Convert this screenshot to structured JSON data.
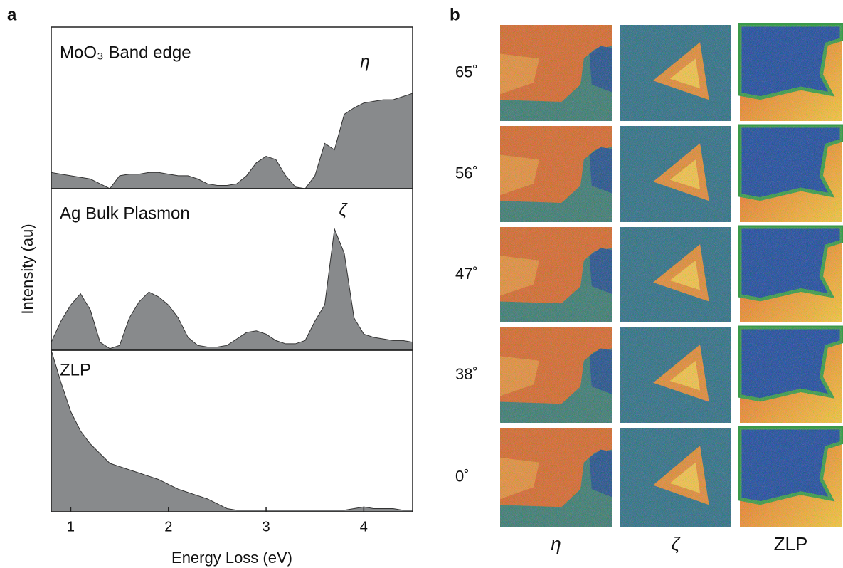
{
  "figure": {
    "panel_labels": [
      "a",
      "b"
    ],
    "ylabel": "Intensity (au)"
  },
  "chart_data": [
    {
      "type": "area",
      "label": "MoO₃ Band edge",
      "annotation": "η",
      "color": "#888a8c",
      "x": [
        0.8,
        0.9,
        1.0,
        1.1,
        1.2,
        1.3,
        1.4,
        1.5,
        1.6,
        1.7,
        1.8,
        1.9,
        2.0,
        2.1,
        2.2,
        2.3,
        2.4,
        2.5,
        2.6,
        2.7,
        2.8,
        2.9,
        3.0,
        3.1,
        3.2,
        3.3,
        3.4,
        3.5,
        3.6,
        3.7,
        3.8,
        3.9,
        4.0,
        4.1,
        4.2,
        4.3,
        4.4,
        4.5
      ],
      "values": [
        10,
        9,
        8,
        7,
        6,
        3,
        0,
        8,
        9,
        9,
        10,
        10,
        9,
        8,
        8,
        6,
        3,
        2,
        2,
        3,
        8,
        16,
        20,
        18,
        8,
        1,
        0,
        8,
        28,
        24,
        46,
        50,
        53,
        54,
        55,
        55,
        57,
        59
      ],
      "xlim": [
        0.8,
        4.5
      ],
      "ylim": [
        0,
        100
      ]
    },
    {
      "type": "area",
      "label": "Ag Bulk Plasmon",
      "annotation": "ζ",
      "color": "#888a8c",
      "x": [
        0.8,
        0.9,
        1.0,
        1.1,
        1.2,
        1.3,
        1.4,
        1.5,
        1.6,
        1.7,
        1.8,
        1.9,
        2.0,
        2.1,
        2.2,
        2.3,
        2.4,
        2.5,
        2.6,
        2.7,
        2.8,
        2.9,
        3.0,
        3.1,
        3.2,
        3.3,
        3.4,
        3.5,
        3.6,
        3.7,
        3.8,
        3.9,
        4.0,
        4.1,
        4.2,
        4.3,
        4.4,
        4.5
      ],
      "values": [
        5,
        18,
        28,
        35,
        25,
        5,
        1,
        3,
        20,
        30,
        36,
        33,
        28,
        20,
        8,
        3,
        2,
        2,
        3,
        7,
        11,
        12,
        10,
        6,
        4,
        4,
        6,
        18,
        28,
        75,
        60,
        20,
        10,
        8,
        7,
        6,
        6,
        5
      ],
      "xlim": [
        0.8,
        4.5
      ],
      "ylim": [
        0,
        100
      ]
    },
    {
      "type": "area",
      "label": "ZLP",
      "color": "#888a8c",
      "x": [
        0.8,
        0.9,
        1.0,
        1.1,
        1.2,
        1.3,
        1.4,
        1.5,
        1.6,
        1.7,
        1.8,
        1.9,
        2.0,
        2.1,
        2.2,
        2.3,
        2.4,
        2.5,
        2.6,
        2.7,
        2.8,
        2.9,
        3.0,
        3.1,
        3.2,
        3.3,
        3.4,
        3.5,
        3.6,
        3.7,
        3.8,
        3.9,
        4.0,
        4.1,
        4.2,
        4.3,
        4.4,
        4.5
      ],
      "values": [
        100,
        80,
        62,
        50,
        42,
        36,
        30,
        28,
        26,
        24,
        22,
        20,
        17,
        14,
        12,
        10,
        8,
        5,
        2,
        1,
        1,
        1,
        1,
        1,
        1,
        1,
        1,
        1,
        1,
        1,
        1,
        2,
        3,
        2,
        2,
        2,
        1,
        1
      ],
      "xlim": [
        0.8,
        4.5
      ],
      "ylim": [
        0,
        100
      ],
      "xticks": [
        1,
        2,
        3,
        4
      ],
      "xlabel": "Energy Loss (eV)"
    }
  ],
  "maps": {
    "row_labels": [
      "65˚",
      "56˚",
      "47˚",
      "38˚",
      "0˚"
    ],
    "column_labels": [
      "η",
      "ζ",
      "ZLP"
    ]
  }
}
